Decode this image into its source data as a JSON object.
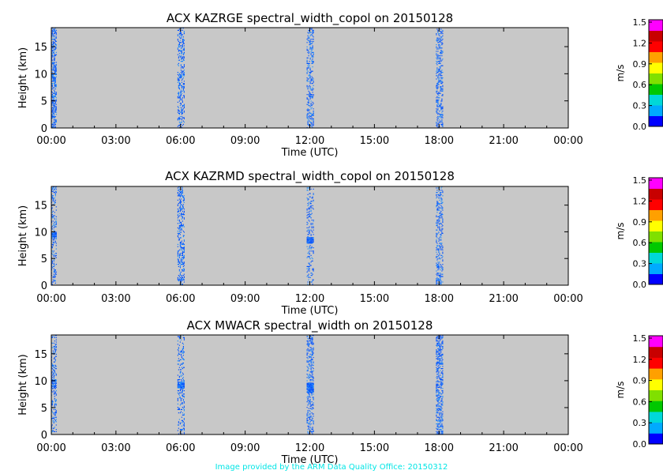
{
  "footer": "Image provided by the ARM Data Quality Office: 20150312",
  "chart_data": [
    {
      "type": "heatmap",
      "title": "ACX KAZRGE spectral_width_copol on 20150128",
      "xlabel": "Time (UTC)",
      "ylabel": "Height (km)",
      "xticks": [
        "00:00",
        "03:00",
        "06:00",
        "09:00",
        "12:00",
        "15:00",
        "18:00",
        "21:00",
        "00:00"
      ],
      "xlim_hours": [
        0,
        24
      ],
      "yticks": [
        0,
        5,
        10,
        15
      ],
      "ylim": [
        0,
        18.5
      ],
      "background_color": "#c8c8c8",
      "colorbar": {
        "label": "m/s",
        "min": 0.0,
        "max": 1.5,
        "ticks": [
          "0.0",
          "0.3",
          "0.6",
          "0.9",
          "1.2",
          "1.5"
        ]
      },
      "data_bands": [
        {
          "time_hours": 0.1,
          "height_km": [
            0,
            18.5
          ],
          "density": 0.55,
          "value_ms": 0.1
        },
        {
          "time_hours": 6.0,
          "height_km": [
            0,
            18.5
          ],
          "density": 0.35,
          "value_ms": 0.1
        },
        {
          "time_hours": 12.0,
          "height_km": [
            0,
            18.5
          ],
          "density": 0.35,
          "value_ms": 0.1
        },
        {
          "time_hours": 18.0,
          "height_km": [
            0,
            18.5
          ],
          "density": 0.35,
          "value_ms": 0.1
        }
      ]
    },
    {
      "type": "heatmap",
      "title": "ACX KAZRMD spectral_width_copol on 20150128",
      "xlabel": "Time (UTC)",
      "ylabel": "Height (km)",
      "xticks": [
        "00:00",
        "03:00",
        "06:00",
        "09:00",
        "12:00",
        "15:00",
        "18:00",
        "21:00",
        "00:00"
      ],
      "xlim_hours": [
        0,
        24
      ],
      "yticks": [
        0,
        5,
        10,
        15
      ],
      "ylim": [
        0,
        18.5
      ],
      "background_color": "#c8c8c8",
      "colorbar": {
        "label": "m/s",
        "min": 0.0,
        "max": 1.5,
        "ticks": [
          "0.0",
          "0.3",
          "0.6",
          "0.9",
          "1.2",
          "1.5"
        ]
      },
      "data_bands": [
        {
          "time_hours": 0.1,
          "height_km": [
            0,
            18.5
          ],
          "density": 0.3,
          "value_ms": 0.1
        },
        {
          "time_hours": 0.1,
          "height_km": [
            8.7,
            10.0
          ],
          "density": 0.9,
          "value_ms": 0.15
        },
        {
          "time_hours": 6.0,
          "height_km": [
            0,
            18.5
          ],
          "density": 0.35,
          "value_ms": 0.1
        },
        {
          "time_hours": 12.0,
          "height_km": [
            0,
            18.5
          ],
          "density": 0.22,
          "value_ms": 0.1
        },
        {
          "time_hours": 12.0,
          "height_km": [
            7.7,
            9.0
          ],
          "density": 0.95,
          "value_ms": 0.15
        },
        {
          "time_hours": 18.0,
          "height_km": [
            0,
            18.5
          ],
          "density": 0.35,
          "value_ms": 0.1
        }
      ]
    },
    {
      "type": "heatmap",
      "title": "ACX MWACR spectral_width on 20150128",
      "xlabel": "Time (UTC)",
      "ylabel": "Height (km)",
      "xticks": [
        "00:00",
        "03:00",
        "06:00",
        "09:00",
        "12:00",
        "15:00",
        "18:00",
        "21:00",
        "00:00"
      ],
      "xlim_hours": [
        0,
        24
      ],
      "yticks": [
        0,
        5,
        10,
        15
      ],
      "ylim": [
        0,
        18.5
      ],
      "background_color": "#c8c8c8",
      "colorbar": {
        "label": "m/s",
        "min": 0.0,
        "max": 1.5,
        "ticks": [
          "0.0",
          "0.3",
          "0.6",
          "0.9",
          "1.2",
          "1.5"
        ]
      },
      "data_bands": [
        {
          "time_hours": 0.1,
          "height_km": [
            0,
            18.5
          ],
          "density": 0.3,
          "value_ms": 0.1
        },
        {
          "time_hours": 0.1,
          "height_km": [
            8.8,
            10.2
          ],
          "density": 0.8,
          "value_ms": 0.15
        },
        {
          "time_hours": 6.0,
          "height_km": [
            0,
            18.5
          ],
          "density": 0.25,
          "value_ms": 0.1
        },
        {
          "time_hours": 6.0,
          "height_km": [
            8.6,
            9.8
          ],
          "density": 0.95,
          "value_ms": 0.15
        },
        {
          "time_hours": 12.0,
          "height_km": [
            0,
            18.5
          ],
          "density": 0.35,
          "value_ms": 0.1
        },
        {
          "time_hours": 12.0,
          "height_km": [
            7.8,
            9.6
          ],
          "density": 0.95,
          "value_ms": 0.15
        },
        {
          "time_hours": 18.0,
          "height_km": [
            0,
            18.5
          ],
          "density": 0.5,
          "value_ms": 0.1
        }
      ]
    }
  ]
}
